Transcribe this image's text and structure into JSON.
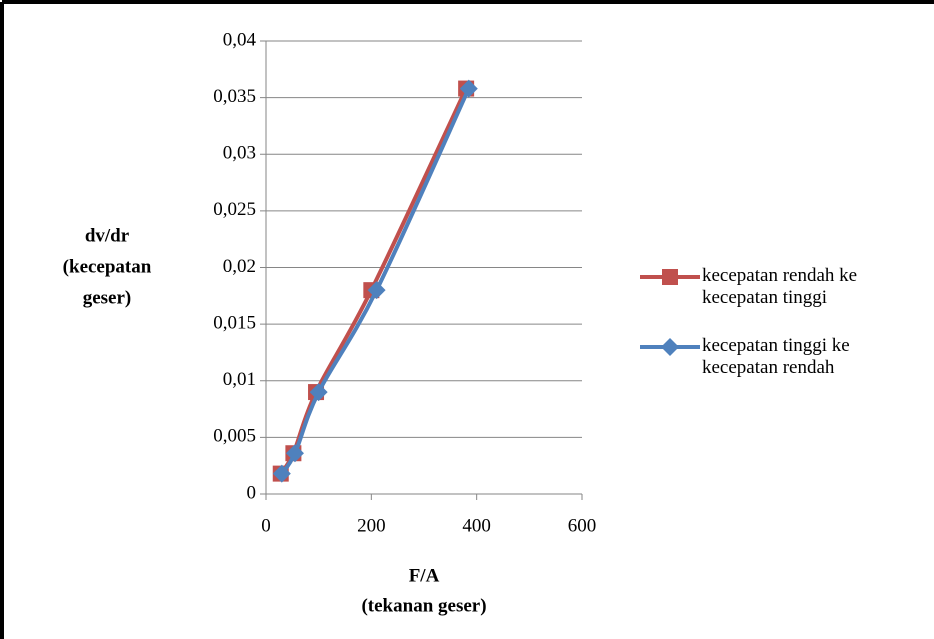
{
  "chart_data": {
    "type": "line",
    "x_label": [
      "F/A",
      "(tekanan geser)"
    ],
    "y_label": [
      "dv/dr",
      "(kecepatan",
      "geser)"
    ],
    "series": [
      {
        "name": "kecepatan rendah ke kecepatan tinggi",
        "color": "#c0504d",
        "marker": "square",
        "x": [
          28,
          52,
          95,
          200,
          380
        ],
        "values": [
          0.0018,
          0.0036,
          0.009,
          0.018,
          0.0358
        ]
      },
      {
        "name": "kecepatan tinggi ke kecepatan rendah",
        "color": "#4f81bd",
        "marker": "diamond",
        "x": [
          30,
          55,
          100,
          210,
          385
        ],
        "values": [
          0.0018,
          0.0036,
          0.009,
          0.018,
          0.0358
        ]
      }
    ],
    "xlim": [
      0,
      600
    ],
    "xticks": [
      0,
      200,
      400,
      600
    ],
    "ylim": [
      0,
      0.04
    ],
    "yticks": [
      0,
      {
        "value": 0.005,
        "label": "0,005"
      },
      {
        "value": 0.01,
        "label": "0,01"
      },
      {
        "value": 0.015,
        "label": "0,015"
      },
      {
        "value": 0.02,
        "label": "0,02"
      },
      {
        "value": 0.025,
        "label": "0,025"
      },
      {
        "value": 0.03,
        "label": "0,03"
      },
      {
        "value": 0.035,
        "label": "0,035"
      },
      {
        "value": 0.04,
        "label": "0,04"
      }
    ],
    "grid": true,
    "legend": "right"
  }
}
